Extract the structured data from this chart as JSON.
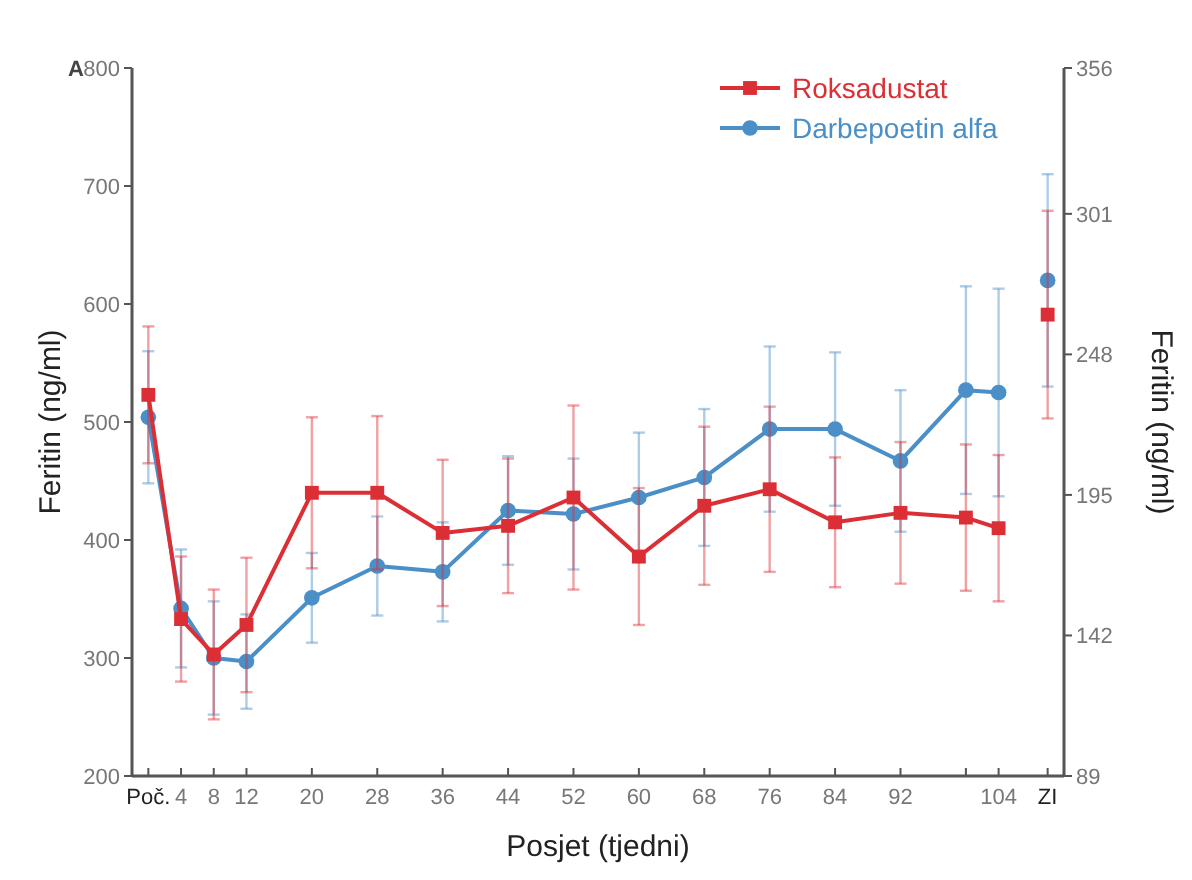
{
  "chart_data": {
    "type": "line",
    "xlabel": "Posjet (tjedni)",
    "ylabel": "Feritin (ng/ml)",
    "y2label": "Feritin (ng/ml)",
    "annotations": [
      "A"
    ],
    "x": [
      0,
      4,
      8,
      12,
      20,
      28,
      36,
      44,
      52,
      60,
      68,
      76,
      84,
      92,
      100,
      104,
      107,
      110
    ],
    "xlim": [
      -2,
      112
    ],
    "xticks": [
      {
        "value": 0,
        "label": "Poč."
      },
      4,
      8,
      12,
      20,
      28,
      36,
      44,
      52,
      60,
      68,
      76,
      84,
      92,
      {
        "value": 100,
        "label": null
      },
      104,
      {
        "value": 110,
        "label": "ZI"
      }
    ],
    "ylim": [
      200,
      800
    ],
    "yticks": [
      200,
      300,
      400,
      500,
      600,
      700,
      800
    ],
    "y2lim": [
      89,
      356
    ],
    "y2ticks": [
      89,
      142,
      195,
      248,
      301,
      356
    ],
    "legend": "top right",
    "grid": false,
    "line_style": "solid",
    "series": [
      {
        "name": "Roksadustat",
        "color": "#dc2f35",
        "marker": "square",
        "values": [
          523,
          333,
          303,
          328,
          440,
          440,
          406,
          412,
          436,
          386,
          429,
          443,
          415,
          423,
          419,
          410,
          null,
          591
        ],
        "errors": [
          58,
          53,
          55,
          57,
          64,
          65,
          62,
          57,
          78,
          58,
          67,
          70,
          55,
          60,
          62,
          62,
          null,
          88
        ]
      },
      {
        "name": "Darbepoetin alfa",
        "color": "#4a8fc7",
        "marker": "circle",
        "values": [
          504,
          342,
          300,
          297,
          351,
          378,
          373,
          425,
          422,
          436,
          453,
          494,
          494,
          467,
          527,
          525,
          null,
          620
        ],
        "errors": [
          56,
          50,
          48,
          40,
          38,
          42,
          42,
          46,
          47,
          55,
          58,
          70,
          65,
          60,
          88,
          88,
          null,
          90
        ]
      }
    ]
  }
}
